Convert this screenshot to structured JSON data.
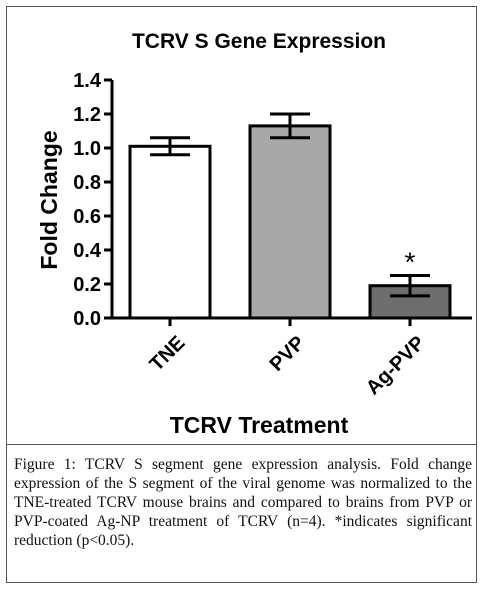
{
  "chart_data": {
    "type": "bar",
    "title": "TCRV S Gene Expression",
    "xlabel": "TCRV Treatment",
    "ylabel": "Fold Change",
    "ylim": [
      0,
      1.4
    ],
    "yticks": [
      "0.0",
      "0.2",
      "0.4",
      "0.6",
      "0.8",
      "1.0",
      "1.2",
      "1.4"
    ],
    "categories": [
      "TNE",
      "PVP",
      "Ag-PVP"
    ],
    "values": [
      1.01,
      1.13,
      0.19
    ],
    "error": [
      0.05,
      0.07,
      0.06
    ],
    "bar_colors": [
      "#ffffff",
      "#a8a8a8",
      "#6e6e6e"
    ],
    "annotations": [
      {
        "category": "Ag-PVP",
        "text": "*"
      }
    ],
    "grid": false
  },
  "caption": {
    "label": "Figure 1:",
    "text": "TCRV S segment gene expression analysis. Fold change expression of the S segment of the viral genome was normalized to the TNE-treated TCRV mouse brains and compared to brains from PVP or PVP-coated Ag-NP treatment of TCRV (n=4). *indicates significant reduction (p<0.05)."
  }
}
